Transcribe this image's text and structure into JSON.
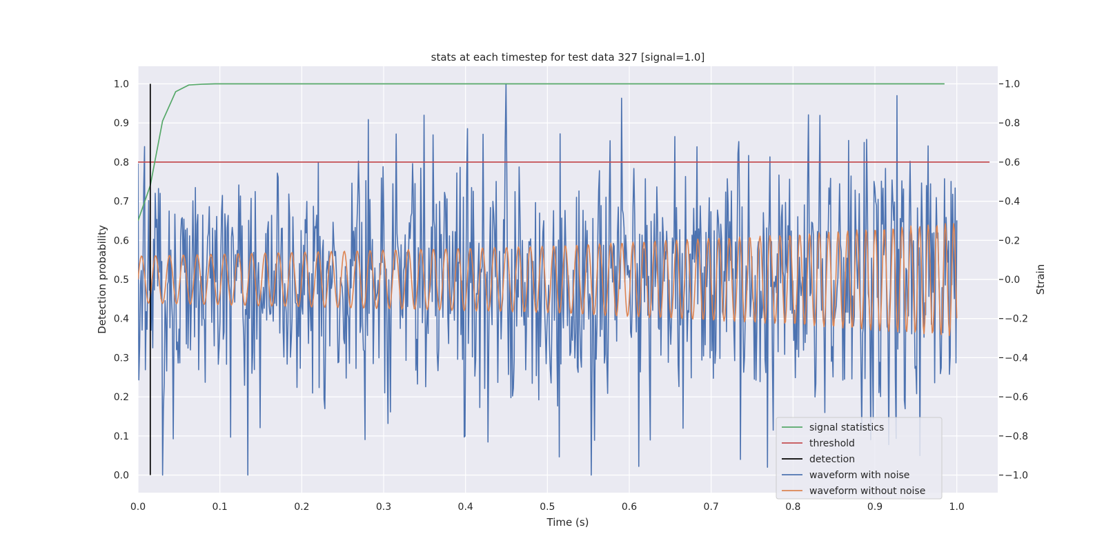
{
  "chart_data": {
    "type": "line",
    "title": "stats at each timestep for test data 327 [signal=1.0]",
    "xlabel": "Time (s)",
    "ylabel_left": "Detection probability",
    "ylabel_right": "Strain",
    "xlim": [
      0.0,
      1.05
    ],
    "ylim_left": [
      -0.045,
      1.045
    ],
    "ylim_right": [
      -1.09,
      1.09
    ],
    "x_ticks": [
      0.0,
      0.1,
      0.2,
      0.3,
      0.4,
      0.5,
      0.6,
      0.7,
      0.8,
      0.9,
      1.0
    ],
    "x_tick_labels": [
      "0.0",
      "0.1",
      "0.2",
      "0.3",
      "0.4",
      "0.5",
      "0.6",
      "0.7",
      "0.8",
      "0.9",
      "1.0"
    ],
    "y_left_ticks": [
      0.0,
      0.1,
      0.2,
      0.3,
      0.4,
      0.5,
      0.6,
      0.7,
      0.8,
      0.9,
      1.0
    ],
    "y_left_tick_labels": [
      "0.0",
      "0.1",
      "0.2",
      "0.3",
      "0.4",
      "0.5",
      "0.6",
      "0.7",
      "0.8",
      "0.9",
      "1.0"
    ],
    "y_right_ticks": [
      -1.0,
      -0.8,
      -0.6,
      -0.4,
      -0.2,
      0.0,
      0.2,
      0.4,
      0.6,
      0.8,
      1.0
    ],
    "y_right_tick_labels": [
      "−1.0",
      "−0.8",
      "−0.6",
      "−0.4",
      "−0.2",
      "0.0",
      "0.2",
      "0.4",
      "0.6",
      "0.8",
      "1.0"
    ],
    "grid": true,
    "legend_position": "bottom-right",
    "series": [
      {
        "name": "signal statistics",
        "axis": "left",
        "color": "#55a868",
        "x": [
          0.0,
          0.015,
          0.03,
          0.046,
          0.062,
          0.078,
          0.094,
          0.2,
          0.4,
          0.6,
          0.8,
          0.985
        ],
        "y": [
          0.65,
          0.74,
          0.905,
          0.98,
          0.997,
          0.999,
          1.0,
          1.0,
          1.0,
          1.0,
          1.0,
          1.0
        ]
      },
      {
        "name": "threshold",
        "axis": "left",
        "color": "#c44e52",
        "x": [
          0.0,
          1.04
        ],
        "y": [
          0.8,
          0.8
        ]
      },
      {
        "name": "detection",
        "axis": "left",
        "color": "#000000",
        "x": [
          0.015,
          0.015
        ],
        "y": [
          0.0,
          1.0
        ]
      },
      {
        "name": "waveform with noise",
        "axis": "right",
        "color": "#4c72b0",
        "samples": 1000,
        "x_range": [
          0.0,
          1.0
        ],
        "y_range_shown": [
          -1.0,
          1.0
        ],
        "notable_peaks": [
          {
            "x": 0.134,
            "y": -1.0
          },
          {
            "x": 0.449,
            "y": 1.0
          },
          {
            "x": 0.349,
            "y": 0.84
          },
          {
            "x": 0.927,
            "y": 0.94
          },
          {
            "x": 0.955,
            "y": -0.9
          },
          {
            "x": 0.769,
            "y": -0.96
          },
          {
            "x": 0.736,
            "y": -0.92
          }
        ]
      },
      {
        "name": "waveform without noise",
        "axis": "right",
        "color": "#dd8452",
        "x": [
          0.0,
          0.1,
          0.2,
          0.3,
          0.4,
          0.5,
          0.6,
          0.7,
          0.8,
          0.9,
          1.0
        ],
        "amplitude": [
          0.12,
          0.13,
          0.14,
          0.15,
          0.16,
          0.17,
          0.19,
          0.21,
          0.23,
          0.26,
          0.29
        ],
        "frequency_hz": [
          58,
          60,
          62,
          64,
          67,
          70,
          74,
          78,
          83,
          90,
          98
        ]
      }
    ]
  }
}
